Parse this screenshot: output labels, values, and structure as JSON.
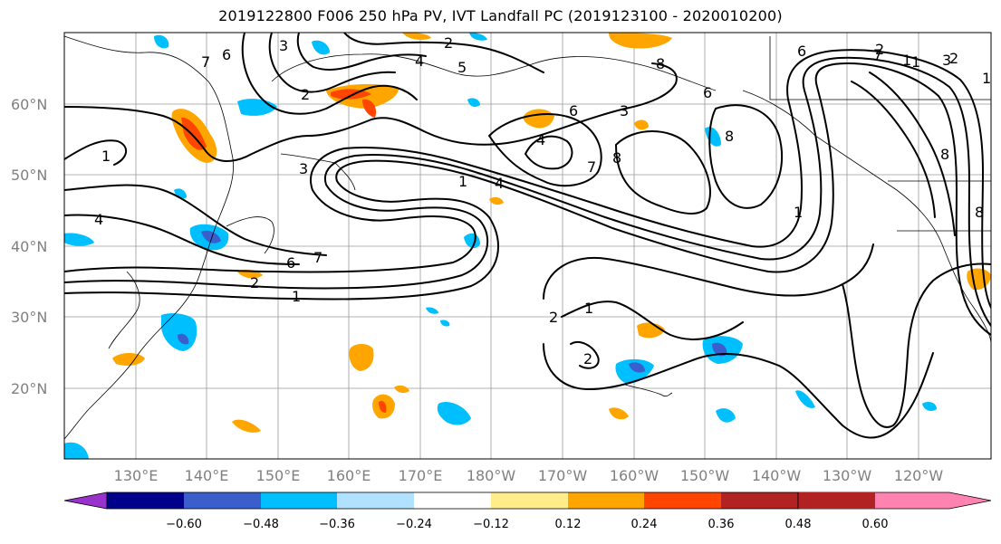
{
  "title": "2019122800 F006 250 hPa PV, IVT Landfall PC (2019123100 - 2020010200)",
  "map": {
    "lat_labels": [
      "60°N",
      "50°N",
      "40°N",
      "30°N",
      "20°N"
    ],
    "lon_labels": [
      "130°E",
      "140°E",
      "150°E",
      "160°E",
      "170°E",
      "180°W",
      "170°W",
      "160°W",
      "150°W",
      "140°W",
      "130°W",
      "120°W"
    ],
    "contour_labels": [
      "2",
      "3",
      "4",
      "5",
      "6",
      "7",
      "8",
      "1",
      "2",
      "3",
      "4",
      "6",
      "7",
      "1",
      "4",
      "2",
      "6",
      "8",
      "6",
      "4",
      "1",
      "7",
      "8",
      "1",
      "2",
      "8",
      "8",
      "1",
      "3",
      "1",
      "6",
      "7",
      "2",
      "3",
      "1",
      "2",
      "1",
      "2"
    ]
  },
  "colorbar": {
    "tick_labels": [
      "−0.60",
      "−0.48",
      "−0.36",
      "−0.24",
      "−0.12",
      "0.12",
      "0.24",
      "0.36",
      "0.48",
      "0.60"
    ],
    "colors": [
      "#9932cc",
      "#00008b",
      "#3a5fcd",
      "#00bfff",
      "#b0e2ff",
      "#ffffff",
      "#ffec8b",
      "#ffa500",
      "#ff4500",
      "#b22222",
      "#ff83b0"
    ]
  }
}
